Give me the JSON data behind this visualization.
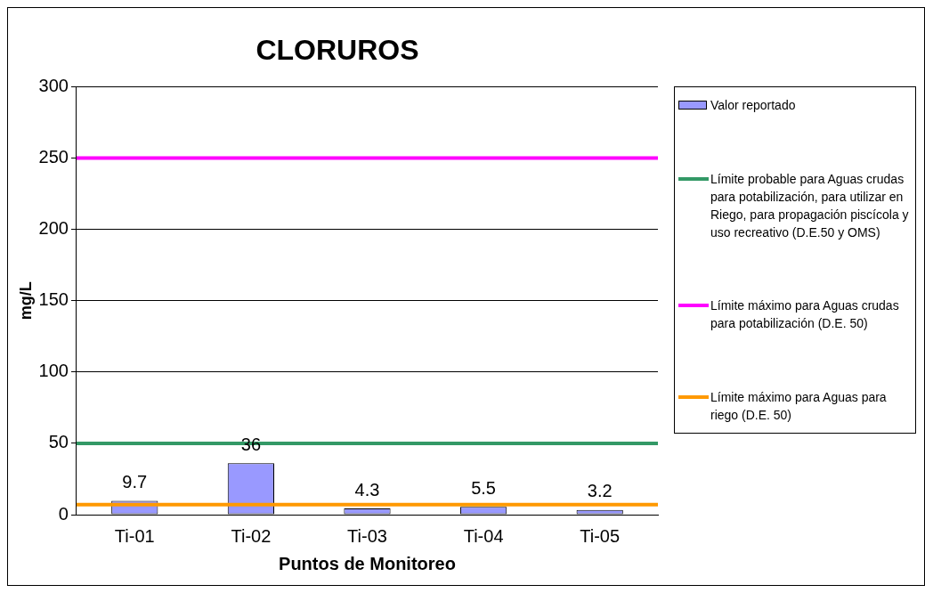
{
  "chart_data": {
    "type": "bar",
    "title": "CLORUROS",
    "xlabel": "Puntos de Monitoreo",
    "ylabel": "mg/L",
    "categories": [
      "Ti-01",
      "Ti-02",
      "Ti-03",
      "Ti-04",
      "Ti-05"
    ],
    "series": [
      {
        "name": "Valor reportado",
        "color": "#9999ff",
        "values": [
          9.7,
          36,
          4.3,
          5.5,
          3.2
        ]
      }
    ],
    "data_labels": true,
    "ylim": [
      0,
      300
    ],
    "yticks": [
      0,
      50,
      100,
      150,
      200,
      250,
      300
    ],
    "grid": "y",
    "legend": "right",
    "ref_lines": [
      {
        "axis": "y",
        "value": 50,
        "label": "Límite probable para Aguas crudas para potabilización, para utilizar en Riego, para propagación piscícola y uso recreativo (D.E.50 y OMS)",
        "color": "#339966"
      },
      {
        "axis": "y",
        "value": 250,
        "label": "Límite máximo para Aguas crudas para potabilización (D.E. 50)",
        "color": "#ff00ff"
      },
      {
        "axis": "y",
        "value": 7,
        "label": "Límite máximo para Aguas para riego (D.E. 50)",
        "color": "#ff9900"
      }
    ]
  }
}
